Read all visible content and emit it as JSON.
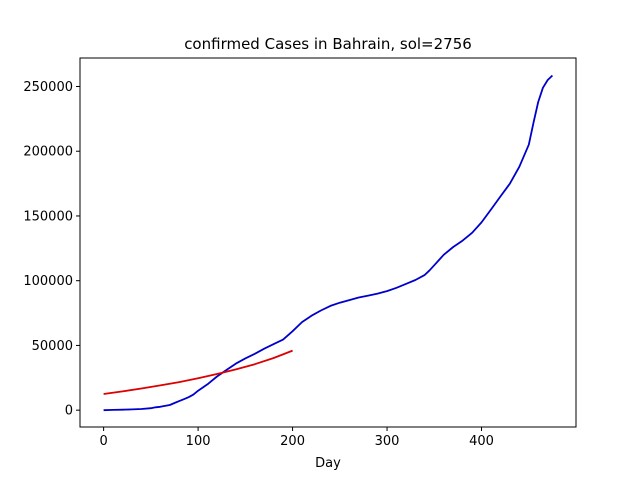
{
  "chart_data": {
    "type": "line",
    "title": "confirmed Cases in Bahrain, sol=2756",
    "xlabel": "Day",
    "ylabel": "",
    "xlim": [
      -25,
      500
    ],
    "ylim": [
      -13000,
      272000
    ],
    "grid": false,
    "legend": "none",
    "xticks": [
      0,
      100,
      200,
      300,
      400
    ],
    "yticks": [
      0,
      50000,
      100000,
      150000,
      200000,
      250000
    ],
    "series": [
      {
        "color": "#0000cc",
        "x": [
          0,
          10,
          20,
          30,
          40,
          50,
          55,
          60,
          65,
          70,
          75,
          80,
          85,
          90,
          95,
          100,
          110,
          120,
          130,
          140,
          150,
          160,
          170,
          180,
          190,
          200,
          210,
          220,
          230,
          240,
          250,
          260,
          270,
          280,
          290,
          300,
          310,
          320,
          330,
          340,
          345,
          350,
          355,
          360,
          370,
          380,
          390,
          400,
          410,
          420,
          430,
          440,
          450,
          455,
          460,
          465,
          470,
          475
        ],
        "y": [
          0,
          200,
          400,
          600,
          900,
          1500,
          2200,
          2600,
          3300,
          4000,
          5500,
          7000,
          8500,
          10000,
          12000,
          15000,
          20000,
          26000,
          31000,
          36000,
          40000,
          43500,
          47500,
          51000,
          54500,
          61000,
          68000,
          73000,
          77000,
          80500,
          83000,
          85000,
          87000,
          88500,
          90000,
          92000,
          94500,
          97500,
          100500,
          104500,
          108000,
          112000,
          116000,
          120000,
          126000,
          131000,
          137000,
          145000,
          155000,
          165000,
          175000,
          188000,
          205000,
          222000,
          238000,
          249000,
          255000,
          258500
        ]
      },
      {
        "color": "#dd0000",
        "x": [
          0,
          20,
          40,
          60,
          80,
          100,
          120,
          140,
          160,
          180,
          200
        ],
        "y": [
          12500,
          14500,
          16700,
          19100,
          21700,
          24700,
          27900,
          31500,
          35500,
          40300,
          46000
        ]
      }
    ]
  }
}
